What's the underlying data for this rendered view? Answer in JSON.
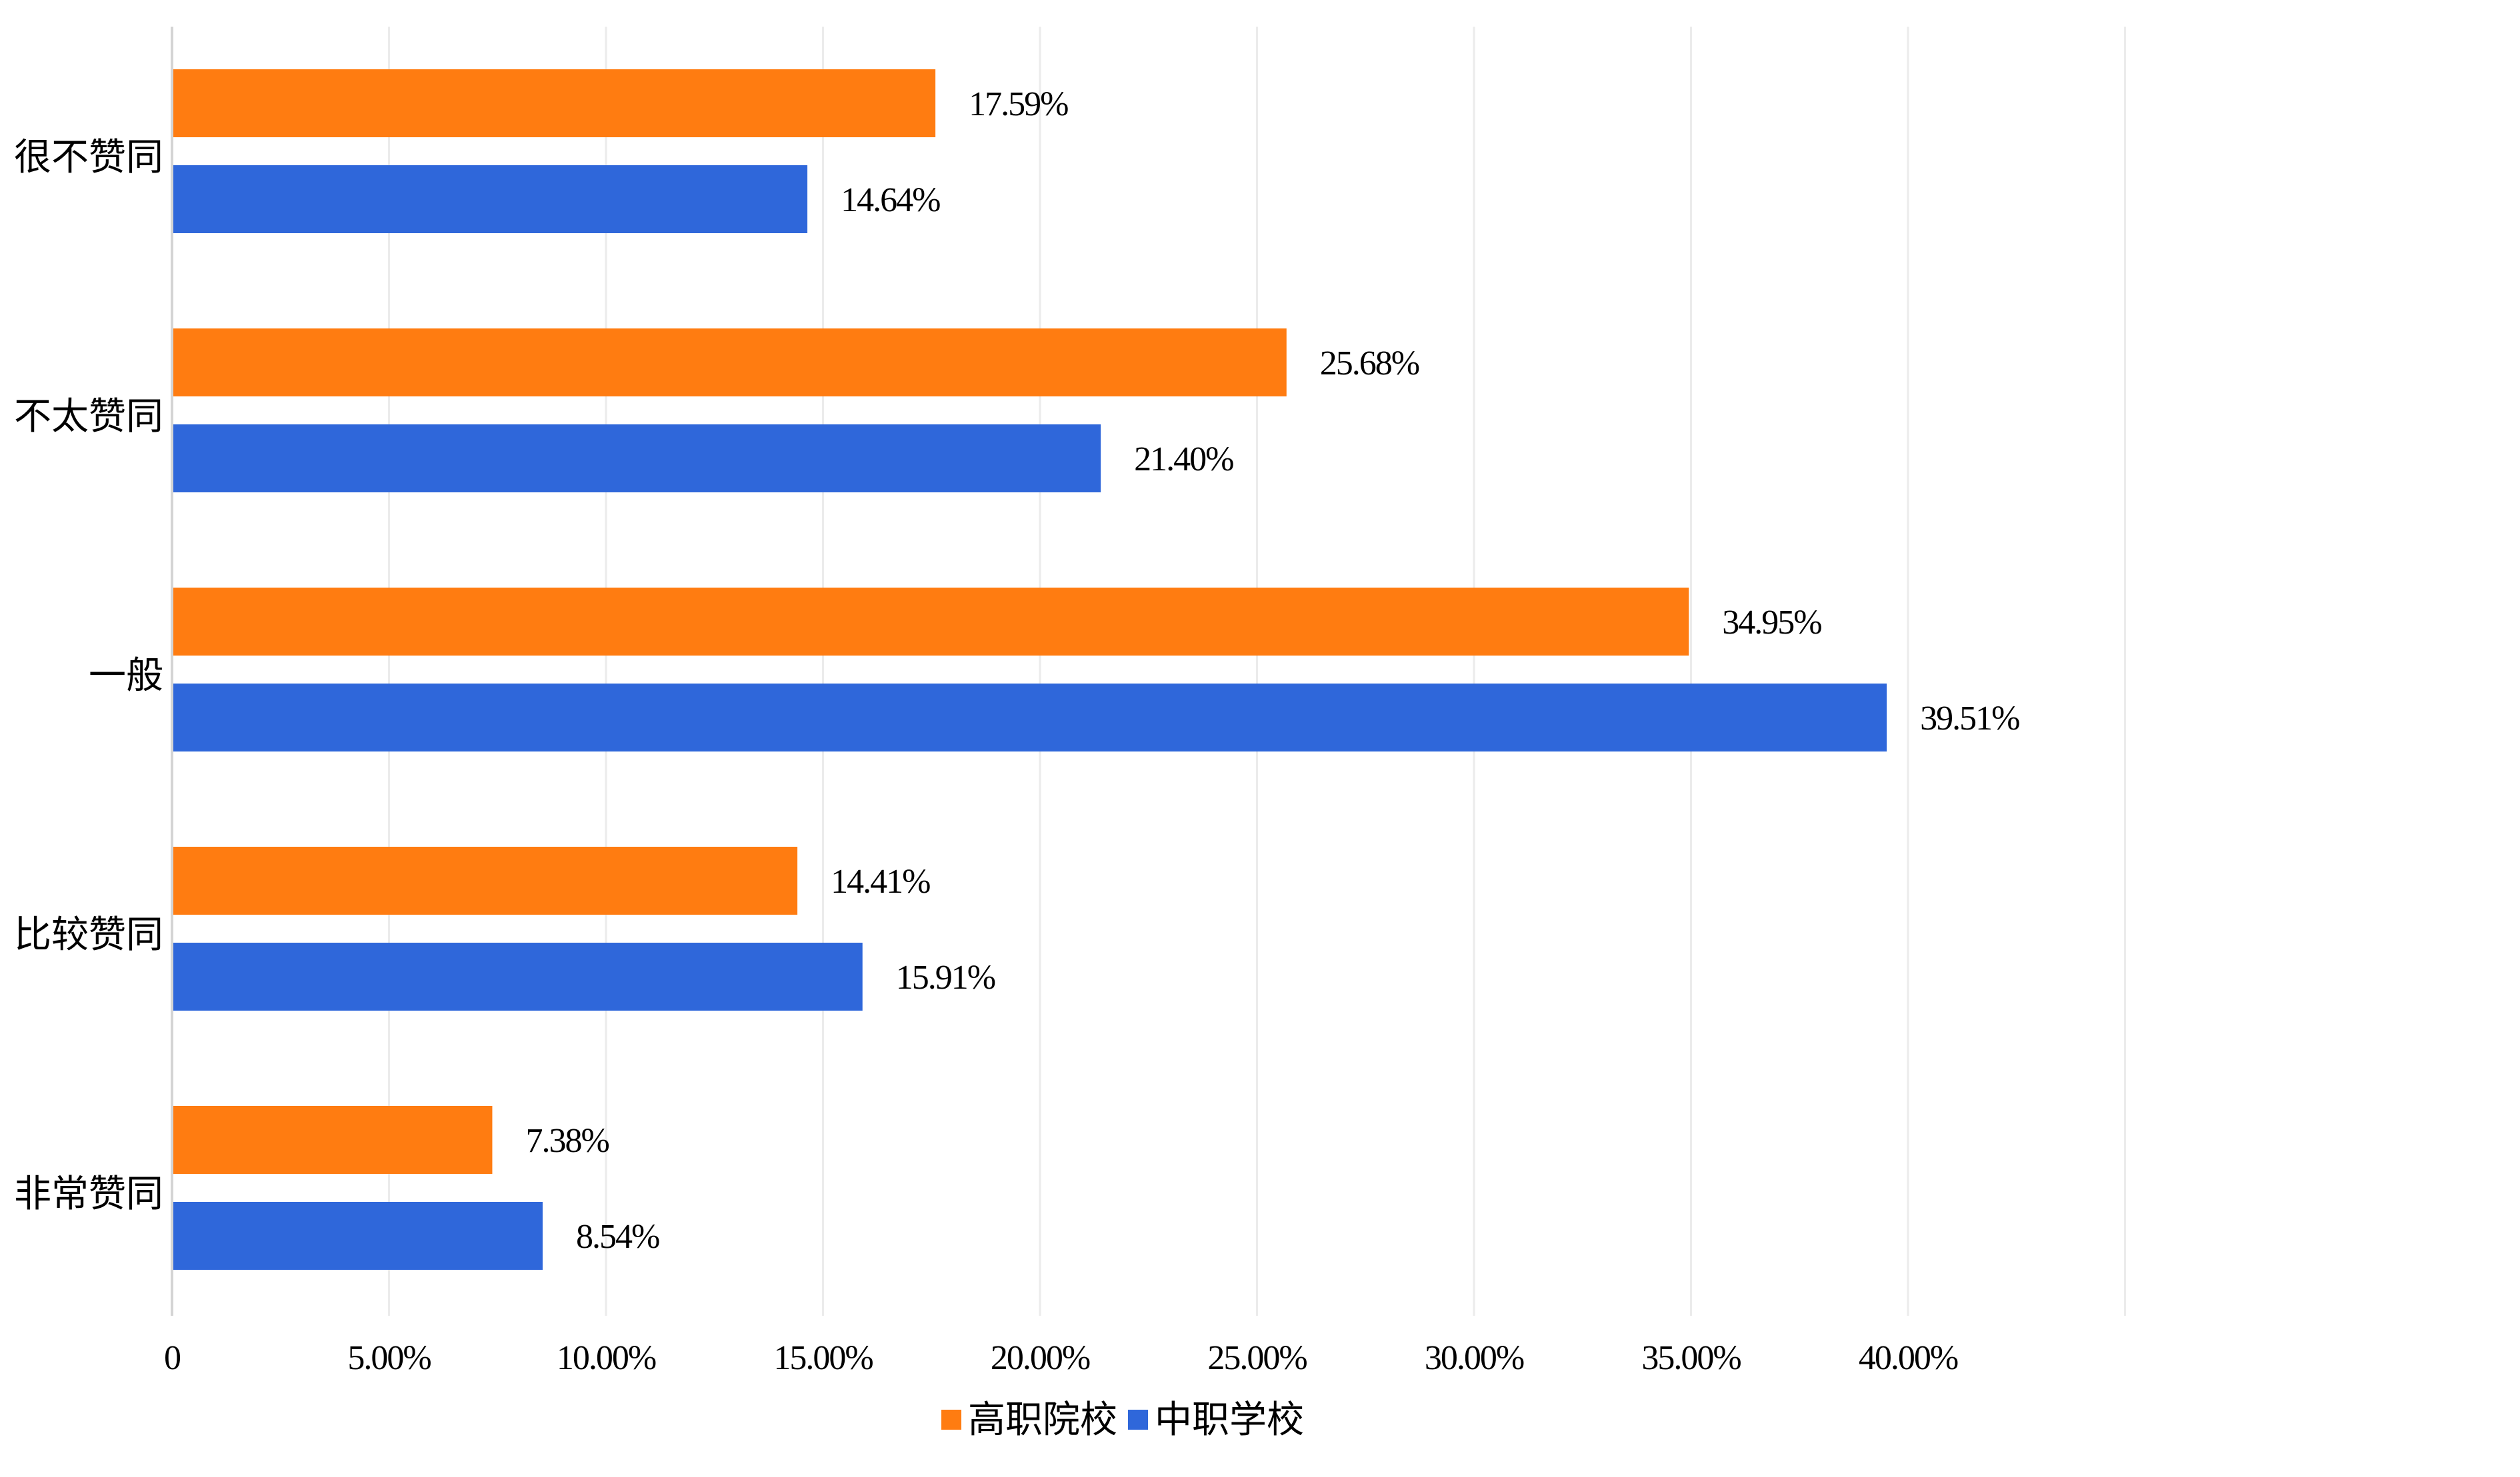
{
  "chart_data": {
    "type": "bar",
    "orientation": "horizontal",
    "title": "",
    "xlabel": "",
    "ylabel": "",
    "categories": [
      "很不赞同",
      "不太赞同",
      "一般",
      "比较赞同",
      "非常赞同"
    ],
    "series": [
      {
        "name": "高职院校",
        "color": "#FF7C11",
        "values": [
          17.59,
          25.68,
          34.95,
          14.41,
          7.38
        ],
        "labels": [
          "17.59%",
          "25.68%",
          "34.95%",
          "14.41%",
          "7.38%"
        ]
      },
      {
        "name": "中职学校",
        "color": "#2F67DA",
        "values": [
          14.64,
          21.4,
          39.51,
          15.91,
          8.54
        ],
        "labels": [
          "14.64%",
          "21.40%",
          "39.51%",
          "15.91%",
          "8.54%"
        ]
      }
    ],
    "xlim": [
      0,
      45
    ],
    "x_ticks": [
      0,
      5,
      10,
      15,
      20,
      25,
      30,
      35,
      40
    ],
    "x_tick_labels": [
      "0",
      "5.00%",
      "10.00%",
      "15.00%",
      "20.00%",
      "25.00%",
      "30.00%",
      "35.00%",
      "40.00%"
    ],
    "grid": true,
    "legend_position": "bottom"
  }
}
